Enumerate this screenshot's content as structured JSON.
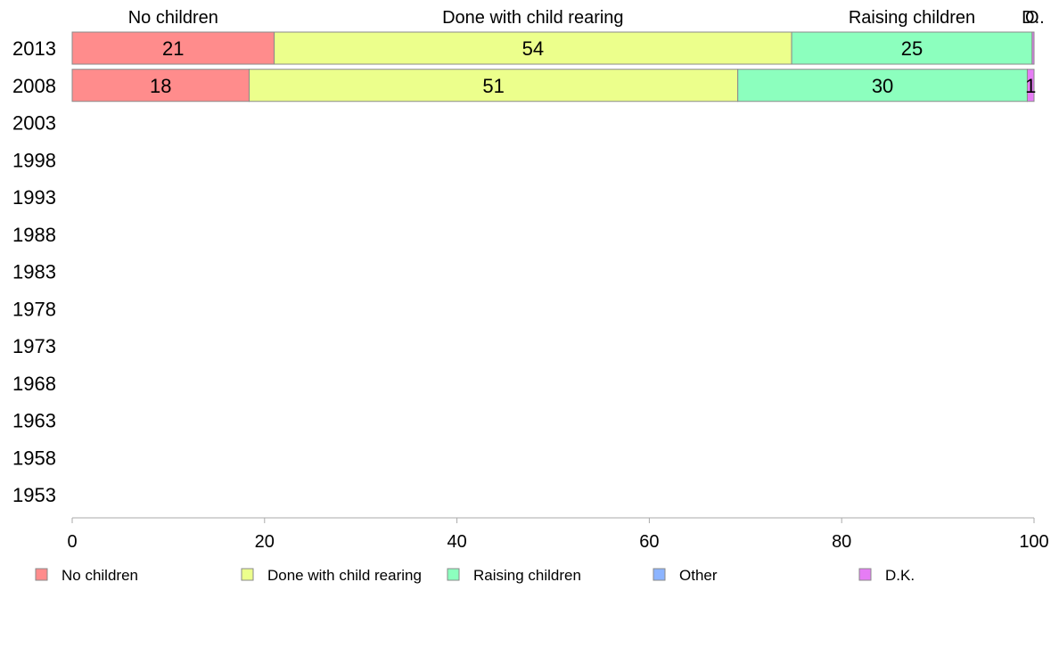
{
  "chart_data": {
    "type": "bar",
    "orientation": "horizontal",
    "stacked": true,
    "categories": [
      "2013",
      "2008",
      "2003",
      "1998",
      "1993",
      "1988",
      "1983",
      "1978",
      "1973",
      "1968",
      "1963",
      "1958",
      "1953"
    ],
    "series": [
      {
        "name": "No children",
        "color": "#ff8c8c",
        "values": [
          21,
          18.4,
          null,
          null,
          null,
          null,
          null,
          null,
          null,
          null,
          null,
          null,
          null
        ],
        "labels": [
          "21",
          "18",
          "",
          "",
          "",
          "",
          "",
          "",
          "",
          "",
          "",
          "",
          ""
        ]
      },
      {
        "name": "Done with child rearing",
        "color": "#ecff8c",
        "values": [
          53.8,
          50.8,
          null,
          null,
          null,
          null,
          null,
          null,
          null,
          null,
          null,
          null,
          null
        ],
        "labels": [
          "54",
          "51",
          "",
          "",
          "",
          "",
          "",
          "",
          "",
          "",
          "",
          "",
          ""
        ]
      },
      {
        "name": "Raising children",
        "color": "#8cffbe",
        "values": [
          25,
          30.1,
          null,
          null,
          null,
          null,
          null,
          null,
          null,
          null,
          null,
          null,
          null
        ],
        "labels": [
          "25",
          "30",
          "",
          "",
          "",
          "",
          "",
          "",
          "",
          "",
          "",
          "",
          ""
        ]
      },
      {
        "name": "Other",
        "color": "#8cb4ff",
        "values": [
          0,
          0,
          null,
          null,
          null,
          null,
          null,
          null,
          null,
          null,
          null,
          null,
          null
        ],
        "labels": [
          "",
          "",
          "",
          "",
          "",
          "",
          "",
          "",
          "",
          "",
          "",
          "",
          ""
        ]
      },
      {
        "name": "D.K.",
        "color": "#e67cf5",
        "values": [
          0.2,
          0.7,
          null,
          null,
          null,
          null,
          null,
          null,
          null,
          null,
          null,
          null,
          null
        ],
        "labels": [
          "",
          "1",
          "",
          "",
          "",
          "",
          "",
          "",
          "",
          "",
          "",
          "",
          ""
        ]
      }
    ],
    "top_labels": [
      "No children",
      "Done with child rearing",
      "Raising children",
      "O",
      "D.."
    ],
    "xlim": [
      0,
      100
    ],
    "xticks": [
      "0",
      "20",
      "40",
      "60",
      "80",
      "100"
    ],
    "legend": [
      "No children",
      "Done with child rearing",
      "Raising children",
      "Other",
      "D.K."
    ],
    "legend_position": "bottom",
    "grid": false,
    "title": "",
    "xlabel": "",
    "ylabel": ""
  }
}
